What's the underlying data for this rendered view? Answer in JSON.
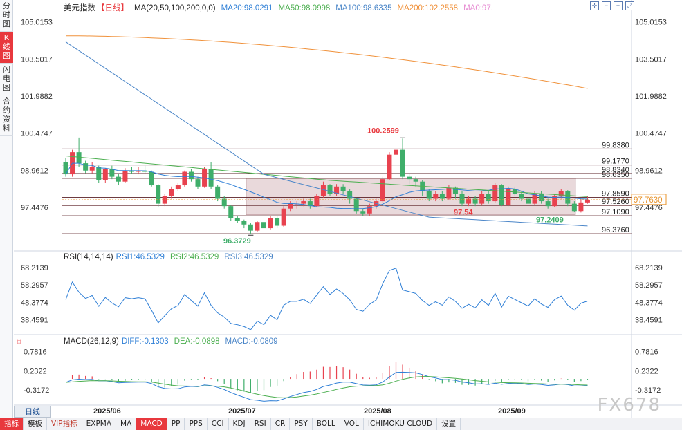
{
  "sidebar": {
    "tabs": [
      {
        "label": "分时图",
        "active": false
      },
      {
        "label": "K线图",
        "active": true
      },
      {
        "label": "闪电图",
        "active": false
      },
      {
        "label": "合约资料",
        "active": false
      }
    ]
  },
  "header": {
    "symbol": "美元指数",
    "period": "【日线】",
    "ma_label": "MA(20,50,100,200,0,0)",
    "ma20": "MA20:98.0291",
    "ma50": "MA50:98.0998",
    "ma100": "MA100:98.6335",
    "ma200": "MA200:102.2558",
    "ma0": "MA0:97."
  },
  "rsi": {
    "label": "RSI(14,14,14)",
    "rsi1": "RSI1:46.5329",
    "rsi2": "RSI2:46.5329",
    "rsi3": "RSI3:46.5329"
  },
  "macd": {
    "label": "MACD(26,12,9)",
    "diff": "DIFF:-0.1303",
    "dea": "DEA:-0.0898",
    "macd": "MACD:-0.0809"
  },
  "colors": {
    "up": "#e8424f",
    "down": "#3fae6a",
    "ma20": "#2f7fd6",
    "ma50": "#4caf50",
    "ma100": "#4b86c8",
    "ma200": "#f0913a",
    "ma0": "#e68bd2"
  },
  "price_axis": [
    "105.0153",
    "103.5017",
    "101.9882",
    "100.4747",
    "98.9612",
    "97.4476"
  ],
  "rsi_axis": [
    "68.2139",
    "58.2957",
    "48.3774",
    "38.4591"
  ],
  "macd_axis": [
    "0.7816",
    "0.2322",
    "-0.3172"
  ],
  "current_price": "97.7630",
  "levels": [
    "99.8380",
    "99.1770",
    "98.8340",
    "98.6350",
    "97.8590",
    "97.5260",
    "97.1090",
    "96.3760"
  ],
  "annotations": {
    "high": "100.2599",
    "low": "96.3729",
    "mark1": "97.54",
    "mark2": "97.2409"
  },
  "dates": [
    "2025/06",
    "2025/07",
    "2025/08",
    "2025/09"
  ],
  "period_button": "日线",
  "bottom_tabs": [
    {
      "label": "指标",
      "style": "red"
    },
    {
      "label": "模板",
      "style": ""
    },
    {
      "label": "VIP指标",
      "style": "vip"
    },
    {
      "label": "EXPMA",
      "style": ""
    },
    {
      "label": "MA",
      "style": ""
    },
    {
      "label": "MACD",
      "style": "red"
    },
    {
      "label": "PP",
      "style": ""
    },
    {
      "label": "PPS",
      "style": ""
    },
    {
      "label": "CCI",
      "style": ""
    },
    {
      "label": "KDJ",
      "style": ""
    },
    {
      "label": "RSI",
      "style": ""
    },
    {
      "label": "CR",
      "style": ""
    },
    {
      "label": "PSY",
      "style": ""
    },
    {
      "label": "BOLL",
      "style": ""
    },
    {
      "label": "VOL",
      "style": ""
    },
    {
      "label": "ICHIMOKU CLOUD",
      "style": ""
    },
    {
      "label": "设置",
      "style": ""
    }
  ],
  "watermark": "FX678",
  "candles": [
    [
      99.3,
      98.8,
      99.45,
      98.7
    ],
    [
      98.8,
      99.7,
      99.8,
      98.7
    ],
    [
      99.7,
      99.25,
      100.3,
      99.1
    ],
    [
      99.25,
      98.95,
      99.35,
      98.85
    ],
    [
      98.95,
      99.1,
      99.3,
      98.85
    ],
    [
      99.1,
      98.55,
      99.15,
      98.45
    ],
    [
      98.55,
      99.0,
      99.05,
      98.45
    ],
    [
      99.0,
      98.7,
      99.15,
      98.6
    ],
    [
      98.7,
      98.5,
      98.8,
      98.35
    ],
    [
      98.5,
      98.95,
      99.05,
      98.45
    ],
    [
      98.95,
      98.9,
      99.1,
      98.8
    ],
    [
      98.9,
      98.95,
      99.1,
      98.8
    ],
    [
      98.95,
      98.9,
      99.15,
      98.85
    ],
    [
      98.9,
      98.35,
      98.95,
      98.3
    ],
    [
      98.35,
      97.6,
      98.4,
      97.45
    ],
    [
      97.6,
      97.9,
      98.0,
      97.5
    ],
    [
      97.9,
      98.2,
      98.3,
      97.8
    ],
    [
      98.2,
      98.35,
      98.45,
      98.1
    ],
    [
      98.35,
      98.9,
      98.95,
      98.3
    ],
    [
      98.9,
      98.6,
      99.0,
      98.5
    ],
    [
      98.6,
      98.3,
      98.7,
      98.2
    ],
    [
      98.3,
      99.0,
      99.1,
      98.25
    ],
    [
      99.0,
      98.3,
      99.3,
      98.2
    ],
    [
      98.3,
      97.8,
      98.35,
      97.7
    ],
    [
      97.8,
      97.5,
      97.9,
      97.4
    ],
    [
      97.5,
      97.0,
      97.55,
      96.9
    ],
    [
      97.0,
      96.9,
      97.1,
      96.8
    ],
    [
      96.9,
      96.75,
      96.95,
      96.6
    ],
    [
      96.75,
      96.5,
      96.8,
      96.37
    ],
    [
      96.5,
      96.85,
      96.9,
      96.45
    ],
    [
      96.85,
      96.6,
      96.95,
      96.5
    ],
    [
      96.6,
      97.0,
      97.1,
      96.55
    ],
    [
      97.0,
      96.7,
      97.1,
      96.6
    ],
    [
      96.7,
      97.4,
      97.5,
      96.65
    ],
    [
      97.4,
      97.6,
      97.7,
      97.3
    ],
    [
      97.6,
      97.6,
      97.7,
      97.4
    ],
    [
      97.6,
      97.7,
      97.8,
      97.5
    ],
    [
      97.7,
      97.5,
      97.8,
      97.4
    ],
    [
      97.5,
      97.9,
      98.0,
      97.45
    ],
    [
      97.9,
      98.35,
      98.5,
      97.85
    ],
    [
      98.35,
      98.0,
      98.4,
      97.9
    ],
    [
      98.0,
      98.3,
      98.4,
      97.9
    ],
    [
      98.3,
      98.1,
      98.4,
      98.0
    ],
    [
      98.1,
      97.8,
      98.2,
      97.6
    ],
    [
      97.8,
      97.3,
      97.85,
      97.2
    ],
    [
      97.3,
      97.2,
      97.4,
      97.1
    ],
    [
      97.2,
      97.5,
      97.6,
      97.1
    ],
    [
      97.5,
      97.7,
      97.8,
      97.4
    ],
    [
      97.7,
      98.6,
      98.7,
      97.65
    ],
    [
      98.6,
      99.6,
      99.7,
      98.55
    ],
    [
      99.6,
      99.8,
      99.9,
      99.5
    ],
    [
      99.8,
      98.7,
      100.26,
      98.6
    ],
    [
      98.7,
      98.6,
      98.85,
      98.4
    ],
    [
      98.6,
      98.5,
      98.7,
      98.3
    ],
    [
      98.5,
      98.1,
      98.55,
      97.9
    ],
    [
      98.1,
      97.8,
      98.2,
      97.7
    ],
    [
      97.8,
      98.0,
      98.1,
      97.7
    ],
    [
      98.0,
      97.8,
      98.1,
      97.7
    ],
    [
      97.8,
      98.25,
      98.35,
      97.75
    ],
    [
      98.25,
      98.0,
      98.3,
      97.8
    ],
    [
      98.0,
      97.6,
      98.1,
      97.5
    ],
    [
      97.6,
      97.8,
      97.9,
      97.5
    ],
    [
      97.8,
      97.6,
      97.9,
      97.5
    ],
    [
      97.6,
      98.0,
      98.1,
      97.55
    ],
    [
      98.0,
      97.7,
      98.1,
      97.6
    ],
    [
      97.7,
      98.35,
      98.45,
      97.65
    ],
    [
      98.35,
      97.55,
      98.4,
      97.5
    ],
    [
      97.55,
      98.2,
      98.3,
      97.5
    ],
    [
      98.2,
      98.0,
      98.3,
      97.9
    ],
    [
      98.0,
      97.8,
      98.1,
      97.7
    ],
    [
      97.8,
      97.6,
      97.9,
      97.5
    ],
    [
      97.6,
      98.0,
      98.1,
      97.55
    ],
    [
      98.0,
      97.7,
      98.1,
      97.6
    ],
    [
      97.7,
      97.5,
      97.8,
      97.4
    ],
    [
      97.5,
      97.9,
      98.0,
      97.45
    ],
    [
      97.9,
      98.1,
      98.2,
      97.8
    ],
    [
      98.1,
      97.6,
      98.15,
      97.5
    ],
    [
      97.6,
      97.3,
      97.7,
      97.25
    ],
    [
      97.3,
      97.65,
      97.8,
      97.24
    ],
    [
      97.65,
      97.76,
      97.9,
      97.6
    ]
  ]
}
